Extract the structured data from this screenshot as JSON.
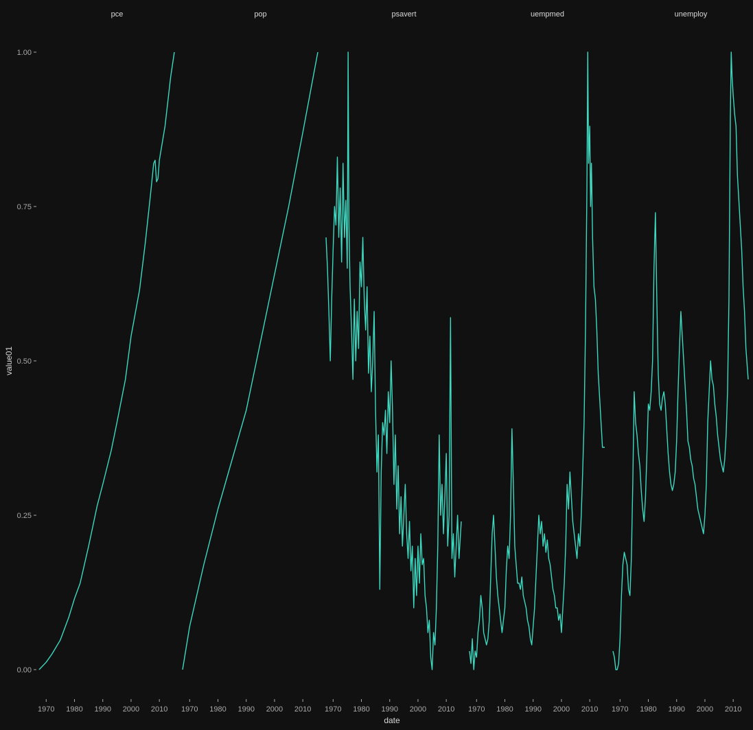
{
  "chart_data": {
    "type": "line",
    "xlabel": "date",
    "ylabel": "value01",
    "ylim": [
      0,
      1
    ],
    "y_ticks": [
      "0.00",
      "0.25",
      "0.50",
      "0.75",
      "1.00"
    ],
    "x_ticks": [
      "1970",
      "1980",
      "1990",
      "2000",
      "2010"
    ],
    "xlim": [
      1967.5,
      2015.3
    ],
    "grid": false,
    "legend": "none",
    "line_color": "#3dd9c1",
    "background_color": "#111111",
    "facets": [
      {
        "name": "pce",
        "x": [
          1967.5,
          1970,
          1972,
          1975,
          1978,
          1980,
          1982,
          1985,
          1988,
          1990,
          1993,
          1995,
          1998,
          2000,
          2001,
          2003,
          2005,
          2007,
          2008,
          2008.5,
          2009,
          2009.5,
          2010,
          2012,
          2014,
          2015.3
        ],
        "values": [
          0.0,
          0.012,
          0.025,
          0.048,
          0.085,
          0.115,
          0.14,
          0.2,
          0.265,
          0.3,
          0.355,
          0.4,
          0.47,
          0.54,
          0.565,
          0.615,
          0.69,
          0.775,
          0.82,
          0.825,
          0.79,
          0.795,
          0.825,
          0.88,
          0.96,
          1.0
        ]
      },
      {
        "name": "pop",
        "x": [
          1967.5,
          1970,
          1975,
          1980,
          1985,
          1990,
          1995,
          2000,
          2005,
          2010,
          2015.3
        ],
        "values": [
          0.0,
          0.07,
          0.17,
          0.26,
          0.34,
          0.42,
          0.53,
          0.64,
          0.75,
          0.87,
          1.0
        ]
      },
      {
        "name": "psavert",
        "x": [
          1967.5,
          1968,
          1968.5,
          1969,
          1969.5,
          1970,
          1970.5,
          1971,
          1971.5,
          1972,
          1972.5,
          1973,
          1973.5,
          1974,
          1974.5,
          1975,
          1975.3,
          1975.6,
          1976,
          1976.5,
          1977,
          1977.5,
          1978,
          1978.5,
          1979,
          1979.5,
          1980,
          1980.5,
          1981,
          1981.5,
          1982,
          1982.5,
          1983,
          1983.5,
          1984,
          1984.5,
          1985,
          1985.5,
          1986,
          1986.5,
          1987,
          1987.5,
          1988,
          1988.5,
          1989,
          1989.5,
          1990,
          1990.5,
          1991,
          1991.5,
          1992,
          1992.5,
          1993,
          1993.5,
          1994,
          1994.5,
          1995,
          1995.5,
          1996,
          1996.5,
          1997,
          1997.5,
          1998,
          1998.5,
          1999,
          1999.5,
          2000,
          2000.5,
          2001,
          2001.5,
          2002,
          2002.5,
          2003,
          2003.5,
          2004,
          2004.5,
          2005,
          2005.5,
          2006,
          2006.5,
          2007,
          2007.5,
          2008,
          2008.5,
          2009,
          2009.5,
          2010,
          2010.5,
          2011,
          2011.5,
          2012,
          2012.5,
          2013,
          2013.5,
          2014,
          2014.5,
          2015.3
        ],
        "values": [
          0.7,
          0.65,
          0.58,
          0.5,
          0.6,
          0.68,
          0.75,
          0.72,
          0.83,
          0.7,
          0.78,
          0.66,
          0.82,
          0.7,
          0.76,
          0.65,
          1.0,
          0.72,
          0.62,
          0.55,
          0.47,
          0.6,
          0.5,
          0.58,
          0.52,
          0.66,
          0.62,
          0.7,
          0.6,
          0.55,
          0.62,
          0.48,
          0.54,
          0.45,
          0.5,
          0.58,
          0.42,
          0.32,
          0.38,
          0.13,
          0.32,
          0.4,
          0.38,
          0.42,
          0.35,
          0.45,
          0.4,
          0.5,
          0.42,
          0.3,
          0.38,
          0.26,
          0.33,
          0.22,
          0.28,
          0.2,
          0.25,
          0.3,
          0.22,
          0.18,
          0.24,
          0.16,
          0.2,
          0.1,
          0.18,
          0.12,
          0.2,
          0.14,
          0.22,
          0.17,
          0.18,
          0.12,
          0.1,
          0.06,
          0.08,
          0.02,
          0.0,
          0.06,
          0.04,
          0.1,
          0.2,
          0.38,
          0.25,
          0.3,
          0.22,
          0.28,
          0.35,
          0.2,
          0.25,
          0.57,
          0.18,
          0.22,
          0.15,
          0.2,
          0.25,
          0.18,
          0.24
        ]
      },
      {
        "name": "uempmed",
        "x": [
          1967.5,
          1968,
          1968.5,
          1969,
          1969.5,
          1970,
          1970.5,
          1971,
          1971.5,
          1972,
          1972.5,
          1973,
          1973.5,
          1974,
          1974.5,
          1975,
          1975.5,
          1976,
          1976.5,
          1977,
          1977.5,
          1978,
          1978.5,
          1979,
          1979.5,
          1980,
          1980.5,
          1981,
          1981.5,
          1982,
          1982.5,
          1983,
          1983.5,
          1984,
          1984.5,
          1985,
          1985.5,
          1986,
          1986.5,
          1987,
          1987.5,
          1988,
          1988.5,
          1989,
          1989.5,
          1990,
          1990.5,
          1991,
          1991.5,
          1992,
          1992.5,
          1993,
          1993.5,
          1994,
          1994.5,
          1995,
          1995.5,
          1996,
          1996.5,
          1997,
          1997.5,
          1998,
          1998.5,
          1999,
          1999.5,
          2000,
          2000.5,
          2001,
          2001.5,
          2002,
          2002.5,
          2003,
          2003.5,
          2004,
          2004.5,
          2005,
          2005.5,
          2006,
          2006.5,
          2007,
          2007.5,
          2008,
          2008.5,
          2009,
          2009.3,
          2009.6,
          2010,
          2010.3,
          2010.6,
          2011,
          2011.5,
          2012,
          2012.5,
          2013,
          2013.5,
          2014,
          2014.5,
          2015.3
        ],
        "values": [
          0.03,
          0.01,
          0.05,
          0.0,
          0.03,
          0.02,
          0.06,
          0.08,
          0.12,
          0.1,
          0.06,
          0.05,
          0.04,
          0.05,
          0.08,
          0.15,
          0.22,
          0.25,
          0.2,
          0.15,
          0.12,
          0.1,
          0.08,
          0.06,
          0.08,
          0.1,
          0.16,
          0.2,
          0.18,
          0.25,
          0.39,
          0.3,
          0.2,
          0.17,
          0.14,
          0.14,
          0.13,
          0.15,
          0.12,
          0.11,
          0.1,
          0.08,
          0.07,
          0.05,
          0.04,
          0.07,
          0.1,
          0.15,
          0.2,
          0.25,
          0.22,
          0.24,
          0.2,
          0.22,
          0.19,
          0.21,
          0.18,
          0.17,
          0.15,
          0.13,
          0.12,
          0.1,
          0.1,
          0.08,
          0.09,
          0.06,
          0.1,
          0.14,
          0.2,
          0.3,
          0.26,
          0.32,
          0.28,
          0.24,
          0.22,
          0.2,
          0.18,
          0.22,
          0.2,
          0.25,
          0.32,
          0.4,
          0.55,
          0.78,
          1.0,
          0.82,
          0.88,
          0.75,
          0.82,
          0.7,
          0.62,
          0.6,
          0.55,
          0.48,
          0.44,
          0.4,
          0.36,
          0.36
        ]
      },
      {
        "name": "unemploy",
        "x": [
          1967.5,
          1968,
          1968.5,
          1969,
          1969.5,
          1970,
          1970.5,
          1971,
          1971.5,
          1972,
          1972.5,
          1973,
          1973.5,
          1974,
          1974.5,
          1975,
          1975.5,
          1976,
          1976.5,
          1977,
          1977.5,
          1978,
          1978.5,
          1979,
          1979.5,
          1980,
          1980.5,
          1981,
          1981.5,
          1982,
          1982.5,
          1983,
          1983.5,
          1984,
          1984.5,
          1985,
          1985.5,
          1986,
          1986.5,
          1987,
          1987.5,
          1988,
          1988.5,
          1989,
          1989.5,
          1990,
          1990.5,
          1991,
          1991.5,
          1992,
          1992.5,
          1993,
          1993.5,
          1994,
          1994.5,
          1995,
          1995.5,
          1996,
          1996.5,
          1997,
          1997.5,
          1998,
          1998.5,
          1999,
          1999.5,
          2000,
          2000.5,
          2001,
          2001.5,
          2002,
          2002.5,
          2003,
          2003.5,
          2004,
          2004.5,
          2005,
          2005.5,
          2006,
          2006.5,
          2007,
          2007.5,
          2008,
          2008.5,
          2009,
          2009.3,
          2009.6,
          2010,
          2010.5,
          2011,
          2011.5,
          2012,
          2012.5,
          2013,
          2013.5,
          2014,
          2014.5,
          2015.3
        ],
        "values": [
          0.03,
          0.02,
          0.0,
          0.0,
          0.01,
          0.05,
          0.12,
          0.17,
          0.19,
          0.18,
          0.17,
          0.13,
          0.12,
          0.18,
          0.3,
          0.45,
          0.4,
          0.38,
          0.35,
          0.33,
          0.29,
          0.26,
          0.24,
          0.28,
          0.35,
          0.43,
          0.42,
          0.45,
          0.5,
          0.65,
          0.74,
          0.6,
          0.48,
          0.43,
          0.42,
          0.44,
          0.45,
          0.43,
          0.39,
          0.35,
          0.32,
          0.3,
          0.29,
          0.3,
          0.32,
          0.37,
          0.45,
          0.52,
          0.58,
          0.54,
          0.5,
          0.46,
          0.42,
          0.37,
          0.36,
          0.34,
          0.33,
          0.31,
          0.3,
          0.28,
          0.26,
          0.25,
          0.24,
          0.23,
          0.22,
          0.25,
          0.3,
          0.4,
          0.45,
          0.5,
          0.47,
          0.46,
          0.43,
          0.41,
          0.38,
          0.36,
          0.34,
          0.33,
          0.32,
          0.34,
          0.38,
          0.45,
          0.6,
          0.9,
          1.0,
          0.96,
          0.93,
          0.9,
          0.88,
          0.8,
          0.76,
          0.72,
          0.68,
          0.62,
          0.58,
          0.52,
          0.47
        ]
      }
    ]
  }
}
